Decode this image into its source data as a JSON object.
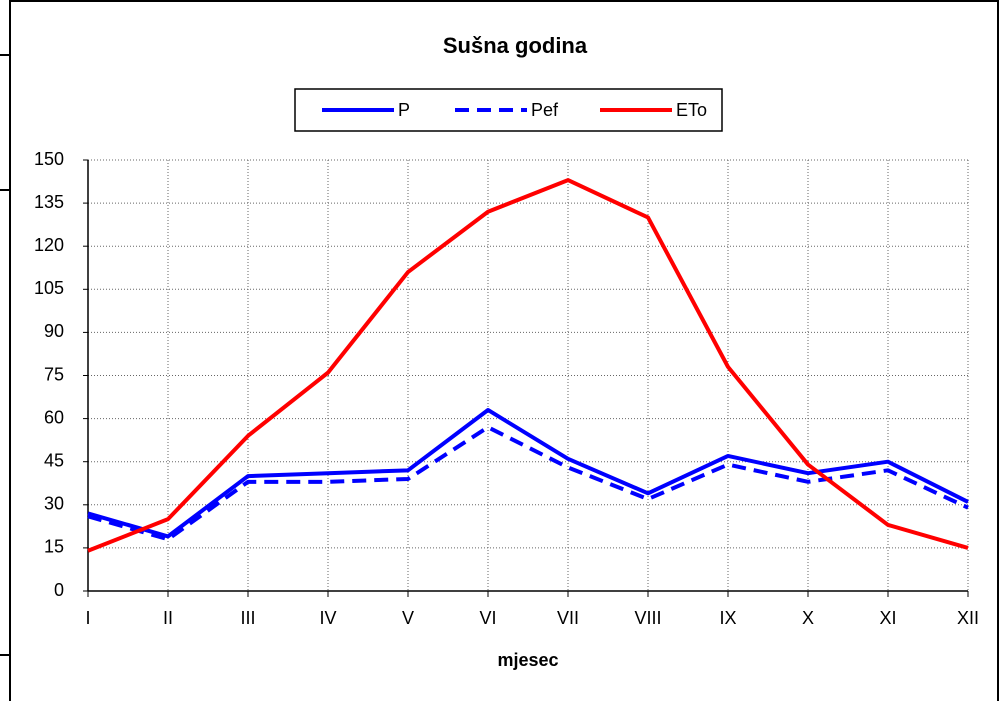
{
  "chart_data": {
    "type": "line",
    "title": "Sušna godina",
    "x_label": "mjesec",
    "categories": [
      "I",
      "II",
      "III",
      "IV",
      "V",
      "VI",
      "VII",
      "VIII",
      "IX",
      "X",
      "XI",
      "XII"
    ],
    "series": [
      {
        "name": "P",
        "color": "#0000ff",
        "dashed": false,
        "values": [
          27,
          19,
          40,
          41,
          42,
          63,
          46,
          34,
          47,
          41,
          45,
          31
        ]
      },
      {
        "name": "Pef",
        "color": "#0000ff",
        "dashed": true,
        "values": [
          26,
          18,
          38,
          38,
          39,
          57,
          43,
          32,
          44,
          38,
          42,
          29
        ]
      },
      {
        "name": "ETo",
        "color": "#ff0000",
        "dashed": false,
        "values": [
          14,
          25,
          54,
          76,
          111,
          132,
          143,
          130,
          78,
          44,
          23,
          15
        ]
      }
    ],
    "ylim": [
      0,
      150
    ],
    "yticks": [
      0,
      15,
      30,
      45,
      60,
      75,
      90,
      105,
      120,
      135,
      150
    ],
    "grid": true
  }
}
